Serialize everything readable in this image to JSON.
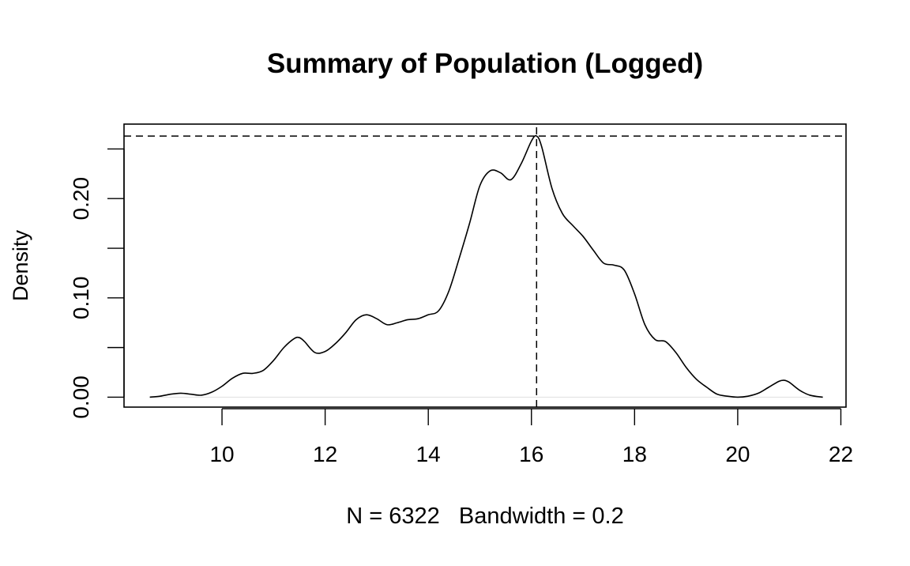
{
  "chart_data": {
    "type": "line",
    "title": "Summary of Population (Logged)",
    "xlabel": "N = 6322   Bandwidth = 0.2",
    "ylabel": "Density",
    "xlim": [
      8.1,
      22.1
    ],
    "ylim": [
      -0.01,
      0.275
    ],
    "x_ticks": [
      10,
      12,
      14,
      16,
      18,
      20,
      22
    ],
    "x_tick_labels": [
      "10",
      "12",
      "14",
      "16",
      "18",
      "20",
      "22"
    ],
    "y_ticks": [
      0.0,
      0.05,
      0.1,
      0.15,
      0.2,
      0.25
    ],
    "y_tick_labels": [
      "0.00",
      "",
      "0.10",
      "",
      "0.20",
      ""
    ],
    "grid": false,
    "zero_line": 0,
    "reference_lines": {
      "vertical_x": 16.1,
      "horizontal_y": 0.263
    },
    "series": [
      {
        "x": [
          8.6,
          8.8,
          9.0,
          9.2,
          9.4,
          9.6,
          9.8,
          10.0,
          10.2,
          10.4,
          10.6,
          10.8,
          11.0,
          11.2,
          11.4,
          11.5,
          11.6,
          11.8,
          12.0,
          12.2,
          12.4,
          12.6,
          12.8,
          13.0,
          13.2,
          13.4,
          13.6,
          13.8,
          14.0,
          14.2,
          14.4,
          14.6,
          14.8,
          15.0,
          15.2,
          15.4,
          15.6,
          15.8,
          16.0,
          16.1,
          16.2,
          16.4,
          16.6,
          16.8,
          17.0,
          17.2,
          17.4,
          17.6,
          17.8,
          18.0,
          18.2,
          18.4,
          18.6,
          18.8,
          19.0,
          19.2,
          19.4,
          19.6,
          19.8,
          20.0,
          20.2,
          20.4,
          20.6,
          20.8,
          20.9,
          21.0,
          21.2,
          21.4,
          21.65
        ],
        "y": [
          0.0,
          0.001,
          0.003,
          0.004,
          0.003,
          0.002,
          0.005,
          0.011,
          0.019,
          0.024,
          0.024,
          0.027,
          0.037,
          0.05,
          0.059,
          0.06,
          0.056,
          0.045,
          0.046,
          0.054,
          0.065,
          0.078,
          0.083,
          0.079,
          0.073,
          0.075,
          0.078,
          0.079,
          0.083,
          0.087,
          0.107,
          0.14,
          0.175,
          0.213,
          0.228,
          0.226,
          0.219,
          0.235,
          0.258,
          0.263,
          0.252,
          0.21,
          0.185,
          0.173,
          0.162,
          0.148,
          0.135,
          0.133,
          0.128,
          0.104,
          0.073,
          0.058,
          0.056,
          0.045,
          0.03,
          0.018,
          0.01,
          0.003,
          0.001,
          0.0,
          0.001,
          0.004,
          0.01,
          0.016,
          0.017,
          0.015,
          0.007,
          0.002,
          0.0
        ]
      }
    ]
  }
}
